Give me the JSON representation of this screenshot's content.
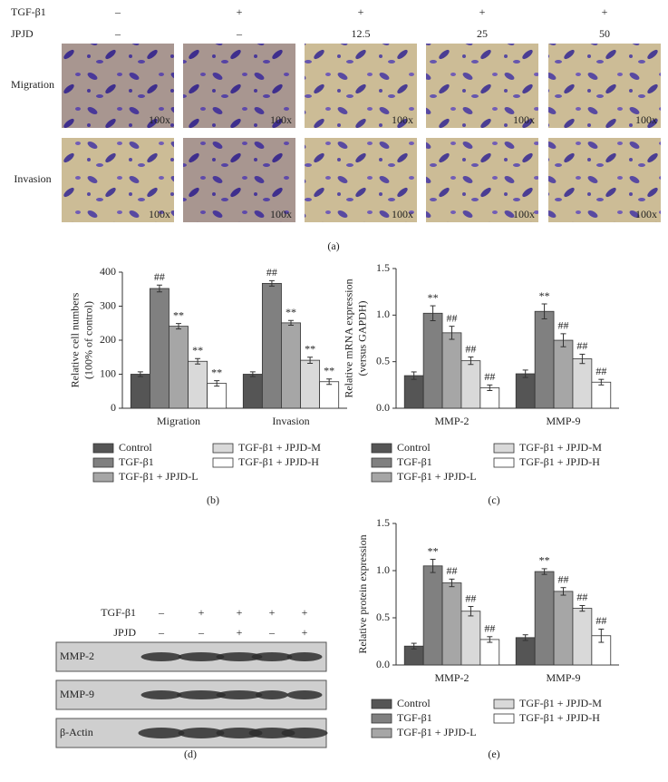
{
  "panel_a": {
    "row_labels": [
      "TGF-β1",
      "JPJD"
    ],
    "tgf": [
      "–",
      "+",
      "+",
      "+",
      "+"
    ],
    "jpjd": [
      "–",
      "–",
      "12.5",
      "25",
      "50"
    ],
    "assays": [
      "Migration",
      "Invasion"
    ],
    "magnification": "100x",
    "label": "(a)"
  },
  "panel_d": {
    "row_labels": [
      "TGF-β1",
      "JPJD"
    ],
    "tgf": [
      "–",
      "+",
      "+",
      "+",
      "+"
    ],
    "jpjd": [
      "–",
      "–",
      "+",
      "–",
      "+"
    ],
    "blots": [
      "MMP-2",
      "MMP-9",
      "β-Actin"
    ],
    "label": "(d)"
  },
  "chart_data": [
    {
      "type": "bar",
      "label": "(b)",
      "ylabel": [
        "Relative cell numbers",
        "(100% of control)"
      ],
      "categories": [
        "Migration",
        "Invasion"
      ],
      "ylim": [
        0,
        400
      ],
      "yticks": [
        0,
        100,
        200,
        300,
        400
      ],
      "series": [
        {
          "name": "Control",
          "color": "#555555",
          "values": [
            100,
            100
          ],
          "errors": [
            7,
            7
          ]
        },
        {
          "name": "TGF-β1",
          "color": "#808080",
          "values": [
            352,
            367
          ],
          "errors": [
            10,
            8
          ],
          "annotations": [
            "##",
            "##"
          ]
        },
        {
          "name": "TGF-β1 + JPJD-L",
          "color": "#a6a6a6",
          "values": [
            241,
            251
          ],
          "errors": [
            8,
            7
          ],
          "annotations": [
            "**",
            "**"
          ]
        },
        {
          "name": "TGF-β1 + JPJD-M",
          "color": "#d9d9d9",
          "values": [
            138,
            141
          ],
          "errors": [
            8,
            9
          ],
          "annotations": [
            "**",
            "**"
          ]
        },
        {
          "name": "TGF-β1 + JPJD-H",
          "color": "#ffffff",
          "values": [
            73,
            78
          ],
          "errors": [
            8,
            8
          ],
          "annotations": [
            "**",
            "**"
          ]
        }
      ]
    },
    {
      "type": "bar",
      "label": "(c)",
      "ylabel": [
        "Relative mRNA expression",
        "(versus GAPDH)"
      ],
      "categories": [
        "MMP-2",
        "MMP-9"
      ],
      "ylim": [
        0,
        1.5
      ],
      "yticks": [
        {
          "value": 0,
          "label": "0.0"
        },
        0.5,
        {
          "value": 1,
          "label": "1.0"
        },
        1.5
      ],
      "series": [
        {
          "name": "Control",
          "color": "#555555",
          "values": [
            0.35,
            0.37
          ],
          "errors": [
            0.04,
            0.04
          ]
        },
        {
          "name": "TGF-β1",
          "color": "#808080",
          "values": [
            1.02,
            1.04
          ],
          "errors": [
            0.08,
            0.08
          ],
          "annotations": [
            "**",
            "**"
          ]
        },
        {
          "name": "TGF-β1 + JPJD-L",
          "color": "#a6a6a6",
          "values": [
            0.81,
            0.73
          ],
          "errors": [
            0.07,
            0.07
          ],
          "annotations": [
            "##",
            "##"
          ]
        },
        {
          "name": "TGF-β1 + JPJD-M",
          "color": "#d9d9d9",
          "values": [
            0.51,
            0.53
          ],
          "errors": [
            0.04,
            0.05
          ],
          "annotations": [
            "##",
            "##"
          ]
        },
        {
          "name": "TGF-β1 + JPJD-H",
          "color": "#ffffff",
          "values": [
            0.22,
            0.28
          ],
          "errors": [
            0.03,
            0.03
          ],
          "annotations": [
            "##",
            "##"
          ]
        }
      ]
    },
    {
      "type": "bar",
      "label": "(e)",
      "ylabel": [
        "Relative protein expression"
      ],
      "categories": [
        "MMP-2",
        "MMP-9"
      ],
      "ylim": [
        0,
        1.5
      ],
      "yticks": [
        {
          "value": 0,
          "label": "0.0"
        },
        0.5,
        {
          "value": 1,
          "label": "1.0"
        },
        1.5
      ],
      "series": [
        {
          "name": "Control",
          "color": "#555555",
          "values": [
            0.2,
            0.29
          ],
          "errors": [
            0.03,
            0.03
          ]
        },
        {
          "name": "TGF-β1",
          "color": "#808080",
          "values": [
            1.05,
            0.99
          ],
          "errors": [
            0.07,
            0.03
          ],
          "annotations": [
            "**",
            "**"
          ]
        },
        {
          "name": "TGF-β1 + JPJD-L",
          "color": "#a6a6a6",
          "values": [
            0.87,
            0.78
          ],
          "errors": [
            0.04,
            0.04
          ],
          "annotations": [
            "##",
            "##"
          ]
        },
        {
          "name": "TGF-β1 + JPJD-M",
          "color": "#d9d9d9",
          "values": [
            0.57,
            0.6
          ],
          "errors": [
            0.05,
            0.03
          ],
          "annotations": [
            "##",
            "##"
          ]
        },
        {
          "name": "TGF-β1 + JPJD-H",
          "color": "#ffffff",
          "values": [
            0.27,
            0.31
          ],
          "errors": [
            0.03,
            0.07
          ],
          "annotations": [
            "##",
            "##"
          ]
        }
      ]
    }
  ]
}
